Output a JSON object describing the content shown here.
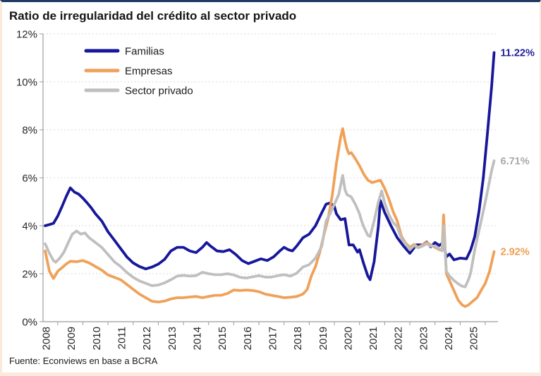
{
  "header": {
    "title": "Ratio de irregularidad del crédito al sector privado"
  },
  "footer": {
    "source": "Fuente: Econviews en base a BCRA"
  },
  "colors": {
    "top_rule": "#1F3864",
    "page_border": "#FAE9DC",
    "gridline": "#D9D9D9",
    "axis": "#9C9C9C",
    "text": "#262626",
    "familias": "#17179B",
    "empresas": "#F0A159",
    "sector_privado": "#BFBFBF",
    "familias_label": "#1F1F9B",
    "empresas_label": "#EF9E50",
    "sector_privado_label": "#A9A9A9"
  },
  "chart_data": {
    "type": "line",
    "title": "Ratio de irregularidad del crédito al sector privado",
    "xlabel": "",
    "ylabel": "",
    "ylim": [
      0,
      12
    ],
    "xlim": [
      2008,
      2026
    ],
    "grid": "horizontal-dashed",
    "legend_position": "top-left-inside",
    "x_label_rotation": -90,
    "y_tick_labels": [
      "0%",
      "2%",
      "4%",
      "6%",
      "8%",
      "10%",
      "12%"
    ],
    "x_tick_labels": [
      "2008",
      "2009",
      "2010",
      "2011",
      "2012",
      "2013",
      "2014",
      "2015",
      "2016",
      "2017",
      "2018",
      "2019",
      "2020",
      "2021",
      "2022",
      "2023",
      "2024",
      "2025"
    ],
    "series": [
      {
        "id": "familias",
        "name": "Familias",
        "color": "#17179B",
        "end_label": "11.22%",
        "end_label_color": "#1F1F9B",
        "points": [
          [
            2008.0,
            4.0
          ],
          [
            2008.17,
            4.05
          ],
          [
            2008.33,
            4.1
          ],
          [
            2008.5,
            4.4
          ],
          [
            2008.67,
            4.8
          ],
          [
            2008.83,
            5.2
          ],
          [
            2009.0,
            5.58
          ],
          [
            2009.17,
            5.4
          ],
          [
            2009.33,
            5.32
          ],
          [
            2009.5,
            5.15
          ],
          [
            2009.67,
            4.95
          ],
          [
            2009.83,
            4.75
          ],
          [
            2010.0,
            4.5
          ],
          [
            2010.25,
            4.2
          ],
          [
            2010.5,
            3.75
          ],
          [
            2010.75,
            3.4
          ],
          [
            2011.0,
            3.05
          ],
          [
            2011.25,
            2.7
          ],
          [
            2011.5,
            2.45
          ],
          [
            2011.75,
            2.3
          ],
          [
            2012.0,
            2.2
          ],
          [
            2012.25,
            2.28
          ],
          [
            2012.5,
            2.4
          ],
          [
            2012.75,
            2.6
          ],
          [
            2013.0,
            2.95
          ],
          [
            2013.25,
            3.1
          ],
          [
            2013.5,
            3.1
          ],
          [
            2013.75,
            2.95
          ],
          [
            2014.0,
            2.88
          ],
          [
            2014.25,
            3.1
          ],
          [
            2014.42,
            3.3
          ],
          [
            2014.58,
            3.15
          ],
          [
            2014.83,
            2.95
          ],
          [
            2015.08,
            2.92
          ],
          [
            2015.33,
            3.0
          ],
          [
            2015.58,
            2.8
          ],
          [
            2015.83,
            2.55
          ],
          [
            2016.08,
            2.42
          ],
          [
            2016.33,
            2.52
          ],
          [
            2016.58,
            2.62
          ],
          [
            2016.83,
            2.55
          ],
          [
            2017.08,
            2.7
          ],
          [
            2017.33,
            2.95
          ],
          [
            2017.5,
            3.1
          ],
          [
            2017.67,
            3.0
          ],
          [
            2017.83,
            2.95
          ],
          [
            2018.0,
            3.15
          ],
          [
            2018.25,
            3.5
          ],
          [
            2018.5,
            3.65
          ],
          [
            2018.75,
            4.0
          ],
          [
            2019.0,
            4.55
          ],
          [
            2019.17,
            4.9
          ],
          [
            2019.33,
            4.95
          ],
          [
            2019.5,
            4.8
          ],
          [
            2019.58,
            4.5
          ],
          [
            2019.75,
            4.25
          ],
          [
            2019.92,
            4.3
          ],
          [
            2020.08,
            3.2
          ],
          [
            2020.25,
            3.2
          ],
          [
            2020.42,
            2.9
          ],
          [
            2020.5,
            3.0
          ],
          [
            2020.67,
            2.4
          ],
          [
            2020.83,
            1.9
          ],
          [
            2020.92,
            1.75
          ],
          [
            2021.08,
            2.5
          ],
          [
            2021.25,
            4.0
          ],
          [
            2021.33,
            5.05
          ],
          [
            2021.5,
            4.55
          ],
          [
            2021.75,
            4.0
          ],
          [
            2022.0,
            3.5
          ],
          [
            2022.25,
            3.15
          ],
          [
            2022.5,
            2.85
          ],
          [
            2022.75,
            3.2
          ],
          [
            2023.0,
            3.2
          ],
          [
            2023.17,
            3.32
          ],
          [
            2023.33,
            3.12
          ],
          [
            2023.5,
            3.3
          ],
          [
            2023.67,
            3.18
          ],
          [
            2023.83,
            3.3
          ],
          [
            2023.95,
            2.7
          ],
          [
            2024.08,
            2.82
          ],
          [
            2024.25,
            2.58
          ],
          [
            2024.5,
            2.65
          ],
          [
            2024.75,
            2.62
          ],
          [
            2024.92,
            3.0
          ],
          [
            2025.08,
            3.55
          ],
          [
            2025.25,
            4.6
          ],
          [
            2025.42,
            6.0
          ],
          [
            2025.58,
            7.8
          ],
          [
            2025.75,
            9.8
          ],
          [
            2025.85,
            11.22
          ]
        ]
      },
      {
        "id": "empresas",
        "name": "Empresas",
        "color": "#F0A159",
        "end_label": "2.92%",
        "end_label_color": "#EF9E50",
        "points": [
          [
            2008.0,
            2.95
          ],
          [
            2008.17,
            2.1
          ],
          [
            2008.33,
            1.8
          ],
          [
            2008.5,
            2.1
          ],
          [
            2008.67,
            2.25
          ],
          [
            2008.83,
            2.4
          ],
          [
            2009.0,
            2.52
          ],
          [
            2009.25,
            2.5
          ],
          [
            2009.5,
            2.55
          ],
          [
            2009.75,
            2.45
          ],
          [
            2010.0,
            2.3
          ],
          [
            2010.25,
            2.15
          ],
          [
            2010.5,
            1.95
          ],
          [
            2010.75,
            1.85
          ],
          [
            2011.0,
            1.75
          ],
          [
            2011.25,
            1.55
          ],
          [
            2011.5,
            1.35
          ],
          [
            2011.75,
            1.15
          ],
          [
            2012.0,
            1.0
          ],
          [
            2012.25,
            0.85
          ],
          [
            2012.5,
            0.82
          ],
          [
            2012.75,
            0.86
          ],
          [
            2013.0,
            0.95
          ],
          [
            2013.25,
            1.0
          ],
          [
            2013.5,
            1.0
          ],
          [
            2013.75,
            1.03
          ],
          [
            2014.0,
            1.05
          ],
          [
            2014.25,
            1.0
          ],
          [
            2014.5,
            1.05
          ],
          [
            2014.75,
            1.1
          ],
          [
            2015.0,
            1.1
          ],
          [
            2015.25,
            1.18
          ],
          [
            2015.5,
            1.32
          ],
          [
            2015.75,
            1.3
          ],
          [
            2016.0,
            1.32
          ],
          [
            2016.25,
            1.3
          ],
          [
            2016.5,
            1.25
          ],
          [
            2016.75,
            1.15
          ],
          [
            2017.0,
            1.1
          ],
          [
            2017.25,
            1.05
          ],
          [
            2017.5,
            1.0
          ],
          [
            2017.75,
            1.02
          ],
          [
            2018.0,
            1.05
          ],
          [
            2018.25,
            1.15
          ],
          [
            2018.42,
            1.35
          ],
          [
            2018.58,
            1.9
          ],
          [
            2018.75,
            2.3
          ],
          [
            2018.92,
            2.9
          ],
          [
            2019.08,
            3.6
          ],
          [
            2019.25,
            4.3
          ],
          [
            2019.42,
            5.3
          ],
          [
            2019.58,
            6.6
          ],
          [
            2019.75,
            7.7
          ],
          [
            2019.83,
            8.05
          ],
          [
            2019.92,
            7.55
          ],
          [
            2020.0,
            7.2
          ],
          [
            2020.08,
            7.0
          ],
          [
            2020.17,
            7.05
          ],
          [
            2020.33,
            6.8
          ],
          [
            2020.5,
            6.5
          ],
          [
            2020.67,
            6.15
          ],
          [
            2020.83,
            5.9
          ],
          [
            2021.0,
            5.8
          ],
          [
            2021.17,
            5.85
          ],
          [
            2021.33,
            5.9
          ],
          [
            2021.5,
            5.55
          ],
          [
            2021.67,
            5.1
          ],
          [
            2021.83,
            4.6
          ],
          [
            2022.0,
            4.2
          ],
          [
            2022.17,
            3.55
          ],
          [
            2022.33,
            3.28
          ],
          [
            2022.5,
            3.1
          ],
          [
            2022.67,
            3.22
          ],
          [
            2022.83,
            3.1
          ],
          [
            2023.0,
            3.2
          ],
          [
            2023.17,
            3.3
          ],
          [
            2023.33,
            3.2
          ],
          [
            2023.5,
            3.1
          ],
          [
            2023.67,
            3.0
          ],
          [
            2023.78,
            2.98
          ],
          [
            2023.84,
            4.45
          ],
          [
            2023.95,
            2.0
          ],
          [
            2024.08,
            1.7
          ],
          [
            2024.25,
            1.3
          ],
          [
            2024.42,
            0.9
          ],
          [
            2024.58,
            0.7
          ],
          [
            2024.7,
            0.63
          ],
          [
            2024.83,
            0.7
          ],
          [
            2025.0,
            0.85
          ],
          [
            2025.17,
            1.0
          ],
          [
            2025.33,
            1.3
          ],
          [
            2025.5,
            1.6
          ],
          [
            2025.67,
            2.1
          ],
          [
            2025.78,
            2.6
          ],
          [
            2025.85,
            2.92
          ]
        ]
      },
      {
        "id": "sector-privado",
        "name": "Sector privado",
        "color": "#BFBFBF",
        "end_label": "6.71%",
        "end_label_color": "#A9A9A9",
        "points": [
          [
            2008.0,
            3.25
          ],
          [
            2008.17,
            2.85
          ],
          [
            2008.33,
            2.55
          ],
          [
            2008.42,
            2.48
          ],
          [
            2008.58,
            2.65
          ],
          [
            2008.75,
            2.9
          ],
          [
            2008.92,
            3.3
          ],
          [
            2009.08,
            3.65
          ],
          [
            2009.25,
            3.78
          ],
          [
            2009.42,
            3.65
          ],
          [
            2009.58,
            3.7
          ],
          [
            2009.75,
            3.5
          ],
          [
            2010.0,
            3.3
          ],
          [
            2010.25,
            3.1
          ],
          [
            2010.5,
            2.8
          ],
          [
            2010.75,
            2.5
          ],
          [
            2011.0,
            2.3
          ],
          [
            2011.25,
            2.05
          ],
          [
            2011.5,
            1.85
          ],
          [
            2011.75,
            1.7
          ],
          [
            2012.0,
            1.6
          ],
          [
            2012.25,
            1.5
          ],
          [
            2012.5,
            1.53
          ],
          [
            2012.75,
            1.62
          ],
          [
            2013.0,
            1.75
          ],
          [
            2013.25,
            1.9
          ],
          [
            2013.5,
            1.93
          ],
          [
            2013.75,
            1.9
          ],
          [
            2014.0,
            1.92
          ],
          [
            2014.25,
            2.06
          ],
          [
            2014.5,
            2.0
          ],
          [
            2014.75,
            1.96
          ],
          [
            2015.0,
            1.96
          ],
          [
            2015.25,
            2.0
          ],
          [
            2015.5,
            1.95
          ],
          [
            2015.75,
            1.85
          ],
          [
            2016.0,
            1.82
          ],
          [
            2016.25,
            1.87
          ],
          [
            2016.5,
            1.92
          ],
          [
            2016.75,
            1.86
          ],
          [
            2017.0,
            1.86
          ],
          [
            2017.25,
            1.92
          ],
          [
            2017.5,
            1.96
          ],
          [
            2017.75,
            1.9
          ],
          [
            2018.0,
            2.02
          ],
          [
            2018.25,
            2.28
          ],
          [
            2018.5,
            2.38
          ],
          [
            2018.75,
            2.65
          ],
          [
            2019.0,
            3.15
          ],
          [
            2019.17,
            4.2
          ],
          [
            2019.33,
            4.5
          ],
          [
            2019.5,
            4.9
          ],
          [
            2019.67,
            5.3
          ],
          [
            2019.83,
            6.1
          ],
          [
            2019.92,
            5.5
          ],
          [
            2020.0,
            5.3
          ],
          [
            2020.17,
            5.2
          ],
          [
            2020.33,
            4.9
          ],
          [
            2020.5,
            4.5
          ],
          [
            2020.58,
            4.2
          ],
          [
            2020.67,
            3.95
          ],
          [
            2020.83,
            3.6
          ],
          [
            2020.92,
            3.55
          ],
          [
            2021.08,
            4.2
          ],
          [
            2021.25,
            5.0
          ],
          [
            2021.38,
            5.45
          ],
          [
            2021.5,
            4.95
          ],
          [
            2021.67,
            4.45
          ],
          [
            2021.83,
            4.15
          ],
          [
            2022.0,
            3.95
          ],
          [
            2022.17,
            3.45
          ],
          [
            2022.33,
            3.25
          ],
          [
            2022.5,
            3.0
          ],
          [
            2022.67,
            3.18
          ],
          [
            2022.83,
            3.08
          ],
          [
            2023.0,
            3.15
          ],
          [
            2023.17,
            3.25
          ],
          [
            2023.33,
            3.15
          ],
          [
            2023.5,
            3.15
          ],
          [
            2023.67,
            3.05
          ],
          [
            2023.78,
            2.95
          ],
          [
            2023.84,
            4.0
          ],
          [
            2023.95,
            2.1
          ],
          [
            2024.08,
            1.9
          ],
          [
            2024.25,
            1.72
          ],
          [
            2024.42,
            1.58
          ],
          [
            2024.58,
            1.48
          ],
          [
            2024.7,
            1.45
          ],
          [
            2024.83,
            1.75
          ],
          [
            2024.92,
            2.05
          ],
          [
            2025.08,
            3.0
          ],
          [
            2025.25,
            3.8
          ],
          [
            2025.42,
            4.6
          ],
          [
            2025.58,
            5.4
          ],
          [
            2025.75,
            6.3
          ],
          [
            2025.85,
            6.71
          ]
        ]
      }
    ]
  }
}
